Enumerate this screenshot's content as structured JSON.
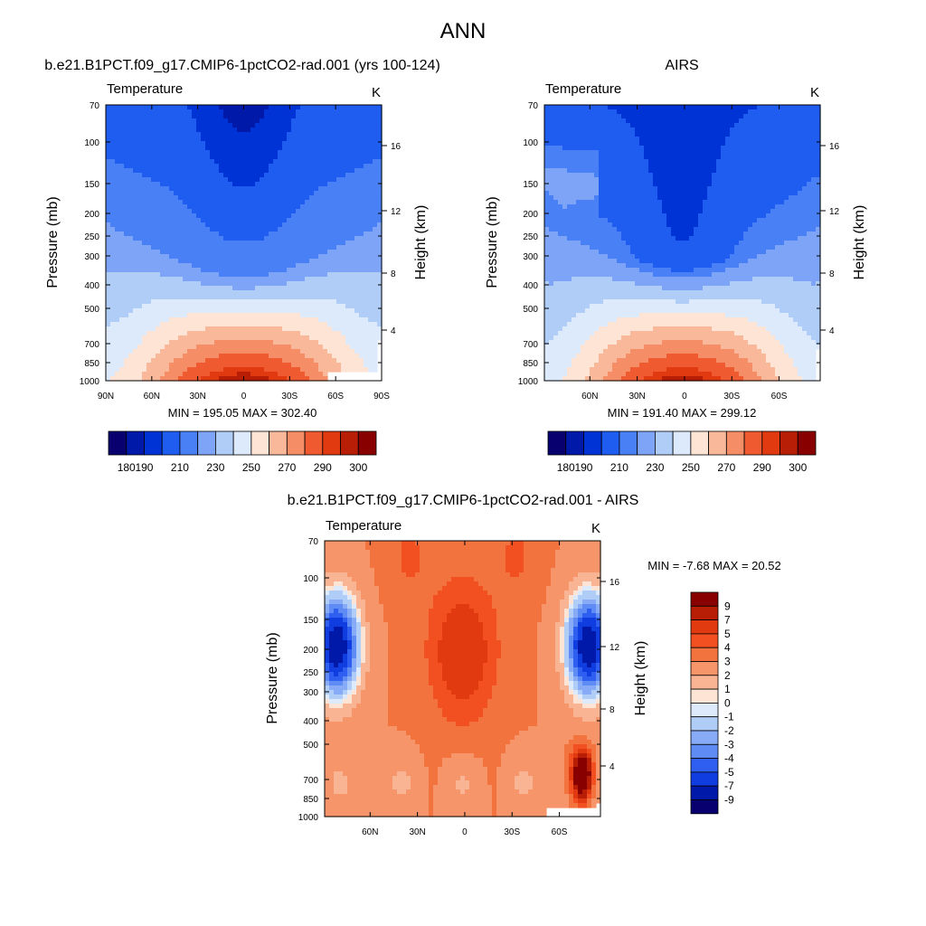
{
  "page_title": "ANN",
  "chart_data": [
    {
      "type": "contour",
      "title": "b.e21.B1PCT.f09_g17.CMIP6-1pctCO2-rad.001 (yrs 100-124)",
      "subtitle_left": "Temperature",
      "subtitle_right": "K",
      "xlabel": "",
      "ylabel": "Pressure (mb)",
      "ylabel_right": "Height (km)",
      "x_ticks": [
        "90N",
        "60N",
        "30N",
        "0",
        "30S",
        "60S",
        "90S"
      ],
      "y_ticks": [
        "70",
        "100",
        "150",
        "200",
        "250",
        "300",
        "400",
        "500",
        "700",
        "850",
        "1000"
      ],
      "y_right_ticks": [
        "16",
        "12",
        "8",
        "4"
      ],
      "stats": "MIN = 195.05  MAX = 302.40",
      "colorbar": {
        "orientation": "horizontal",
        "labels": [
          "180",
          "190",
          "210",
          "230",
          "250",
          "270",
          "290",
          "300"
        ],
        "levels": [
          180,
          185,
          190,
          200,
          210,
          220,
          230,
          240,
          250,
          260,
          270,
          280,
          290,
          295,
          300
        ]
      }
    },
    {
      "type": "contour",
      "title": "AIRS",
      "subtitle_left": "Temperature",
      "subtitle_right": "K",
      "xlabel": "",
      "ylabel": "Pressure (mb)",
      "ylabel_right": "Height (km)",
      "x_ticks": [
        "60N",
        "30N",
        "0",
        "30S",
        "60S"
      ],
      "y_ticks": [
        "70",
        "100",
        "150",
        "200",
        "250",
        "300",
        "400",
        "500",
        "700",
        "850",
        "1000"
      ],
      "y_right_ticks": [
        "16",
        "12",
        "8",
        "4"
      ],
      "stats": "MIN = 191.40  MAX = 299.12",
      "colorbar": {
        "orientation": "horizontal",
        "labels": [
          "180",
          "190",
          "210",
          "230",
          "250",
          "270",
          "290",
          "300"
        ],
        "levels": [
          180,
          185,
          190,
          200,
          210,
          220,
          230,
          240,
          250,
          260,
          270,
          280,
          290,
          295,
          300
        ]
      }
    },
    {
      "type": "contour",
      "title": "b.e21.B1PCT.f09_g17.CMIP6-1pctCO2-rad.001 - AIRS",
      "subtitle_left": "Temperature",
      "subtitle_right": "K",
      "xlabel": "",
      "ylabel": "Pressure (mb)",
      "ylabel_right": "Height (km)",
      "x_ticks": [
        "60N",
        "30N",
        "0",
        "30S",
        "60S"
      ],
      "y_ticks": [
        "70",
        "100",
        "150",
        "200",
        "250",
        "300",
        "400",
        "500",
        "700",
        "850",
        "1000"
      ],
      "y_right_ticks": [
        "16",
        "12",
        "8",
        "4"
      ],
      "stats": "MIN =  -7.68  MAX =  20.52",
      "colorbar": {
        "orientation": "vertical",
        "labels": [
          "9",
          "7",
          "5",
          "4",
          "3",
          "2",
          "1",
          "0",
          "-1",
          "-2",
          "-3",
          "-4",
          "-5",
          "-7",
          "-9"
        ]
      }
    }
  ],
  "colors": {
    "abs_palette": [
      "#08006e",
      "#0019a8",
      "#0033d6",
      "#1f5cf0",
      "#4a80f5",
      "#7ea4f7",
      "#b0cdf8",
      "#ddeafc",
      "#fde4d4",
      "#f9b89a",
      "#f58d66",
      "#ef5a30",
      "#e23a10",
      "#b81e06",
      "#880000"
    ],
    "diff_palette": [
      "#880000",
      "#b81e06",
      "#e23a10",
      "#f25021",
      "#f3733f",
      "#f6946a",
      "#f9b493",
      "#fde4d4",
      "#ddeafc",
      "#b0cdf8",
      "#87abf6",
      "#5e8cf4",
      "#2e5ff0",
      "#0f3de0",
      "#0019a8",
      "#08006e"
    ]
  }
}
